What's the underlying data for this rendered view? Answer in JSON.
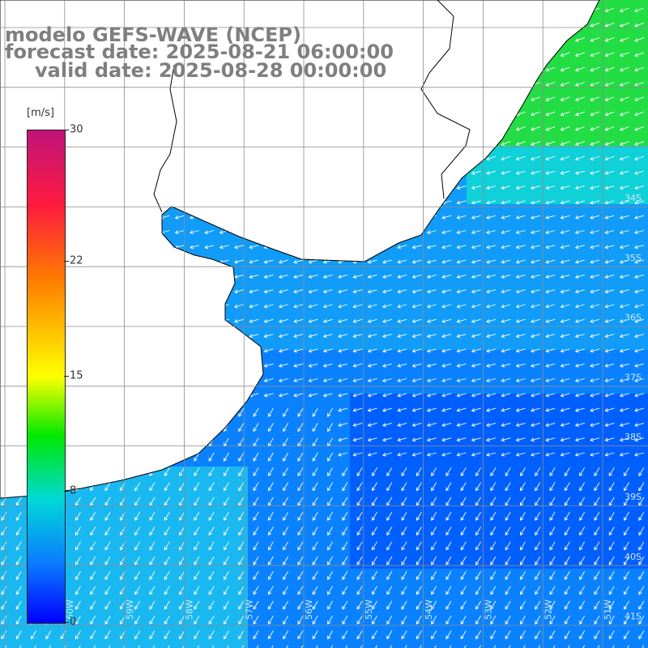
{
  "title": {
    "line1": "modelo GEFS-WAVE (NCEP)",
    "line2": "forecast date: 2025-08-21 06:00:00",
    "line3": "valid date: 2025-08-28 00:00:00"
  },
  "colorbar": {
    "unit": "[m/s]",
    "min": 0,
    "max": 30,
    "ticks": [
      {
        "label": "30",
        "value": 30
      },
      {
        "label": "22",
        "value": 22
      },
      {
        "label": "15",
        "value": 15
      },
      {
        "label": "8",
        "value": 8
      },
      {
        "label": "0",
        "value": 0
      }
    ],
    "colors": [
      "#0000ff",
      "#0a7bff",
      "#00d8d8",
      "#00e800",
      "#ffff00",
      "#ff7a00",
      "#ff1a40",
      "#c0147a"
    ]
  },
  "map": {
    "lon_range": [
      -61,
      -50
    ],
    "lat_range": [
      -41.4,
      -31.2
    ],
    "land_color": "#ffffff",
    "grid_color": "#8c8c8c",
    "lat_labels": [
      "34S",
      "35S",
      "36S",
      "37S",
      "38S",
      "39S",
      "40S",
      "41S"
    ],
    "lon_labels": [
      "60W",
      "59W",
      "58W",
      "57W",
      "56W",
      "55W",
      "54W",
      "53W",
      "52W",
      "51W"
    ]
  }
}
